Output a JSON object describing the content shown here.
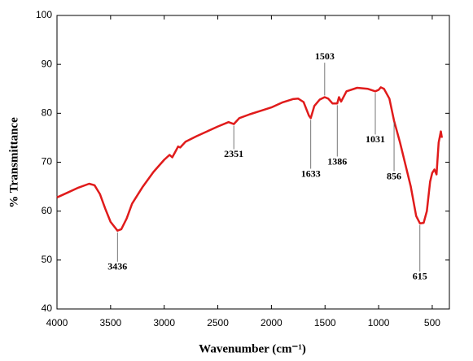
{
  "chart_data": {
    "type": "line",
    "x_label": "Wavenumber (cm⁻¹)",
    "y_label": "% Transmittance",
    "xlim": [
      4000,
      340
    ],
    "ylim": [
      40,
      100
    ],
    "xticks": [
      4000,
      3500,
      3000,
      2500,
      2000,
      1500,
      1000,
      500
    ],
    "yticks": [
      40,
      50,
      60,
      70,
      80,
      90,
      100
    ],
    "x": [
      4000,
      3900,
      3800,
      3700,
      3650,
      3600,
      3550,
      3500,
      3436,
      3400,
      3350,
      3300,
      3200,
      3100,
      3000,
      2950,
      2925,
      2900,
      2870,
      2850,
      2800,
      2700,
      2600,
      2500,
      2400,
      2351,
      2300,
      2200,
      2100,
      2000,
      1900,
      1800,
      1750,
      1700,
      1650,
      1633,
      1600,
      1550,
      1503,
      1470,
      1430,
      1386,
      1370,
      1350,
      1300,
      1200,
      1100,
      1031,
      1000,
      980,
      950,
      900,
      856,
      800,
      700,
      650,
      615,
      580,
      550,
      520,
      500,
      480,
      460,
      440,
      420,
      410
    ],
    "series": [
      {
        "name": "spectrum",
        "color": "#e01b1b",
        "values": [
          62.8,
          63.8,
          64.8,
          65.6,
          65.3,
          63.5,
          60.5,
          57.8,
          56.0,
          56.3,
          58.5,
          61.5,
          65.0,
          68.0,
          70.5,
          71.5,
          71.0,
          72.0,
          73.2,
          73.0,
          74.2,
          75.3,
          76.3,
          77.3,
          78.2,
          77.8,
          79.0,
          79.8,
          80.5,
          81.2,
          82.2,
          82.9,
          83.0,
          82.3,
          79.5,
          79.0,
          81.5,
          82.8,
          83.3,
          83.0,
          82.0,
          82.0,
          83.3,
          82.4,
          84.5,
          85.2,
          85.0,
          84.5,
          84.8,
          85.3,
          85.0,
          83.0,
          78.5,
          74.0,
          65.0,
          59.0,
          57.5,
          57.6,
          60.0,
          66.0,
          67.8,
          68.5,
          67.5,
          74.0,
          76.3,
          75.0
        ]
      }
    ],
    "peaks": [
      3436,
      2351,
      1633,
      1503,
      1386,
      1031,
      856,
      615
    ]
  }
}
